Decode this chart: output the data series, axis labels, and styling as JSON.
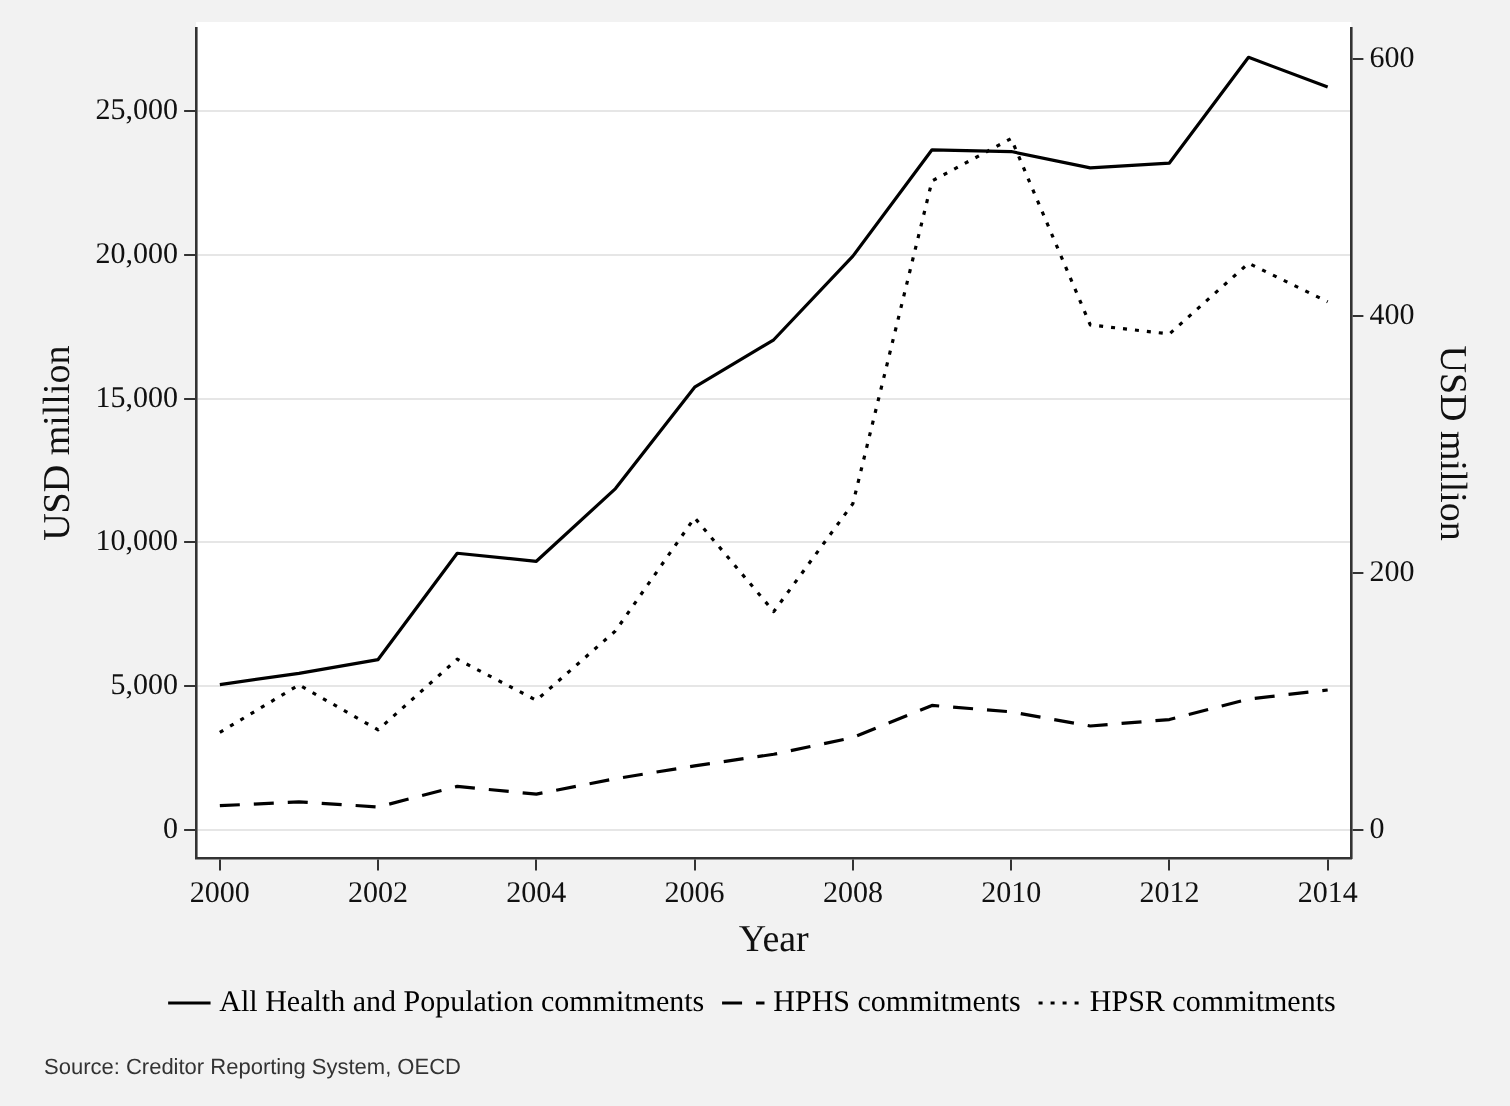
{
  "chart_data": {
    "type": "line",
    "xlabel": "Year",
    "ylabel": "USD million",
    "y2label": "USD million",
    "x": [
      2000,
      2001,
      2002,
      2003,
      2004,
      2005,
      2006,
      2007,
      2008,
      2009,
      2010,
      2011,
      2012,
      2013,
      2014
    ],
    "xlim": [
      1999.7,
      2014.3
    ],
    "xticks": [
      2000,
      2002,
      2004,
      2006,
      2008,
      2010,
      2012,
      2014
    ],
    "ylim": [
      -1000,
      27900
    ],
    "yticks": [
      {
        "value": 0,
        "label": "0"
      },
      {
        "value": 5000,
        "label": "5,000"
      },
      {
        "value": 10000,
        "label": "10,000"
      },
      {
        "value": 15000,
        "label": "15,000"
      },
      {
        "value": 20000,
        "label": "20,000"
      },
      {
        "value": 25000,
        "label": "25,000"
      }
    ],
    "y2lim": [
      -22,
      624
    ],
    "y2ticks": [
      0,
      200,
      400,
      600
    ],
    "grid": "y",
    "legend": "bottom",
    "marker": "none",
    "series": [
      {
        "name": "All Health and Population commitments",
        "color": "#000000",
        "line_style": "solid",
        "values": [
          5050,
          5440,
          5920,
          9620,
          9340,
          11870,
          15400,
          17050,
          19960,
          23660,
          23600,
          23030,
          23200,
          26880,
          25850
        ]
      },
      {
        "name": "HPHS commitments",
        "color": "#000000",
        "line_style": "dashed",
        "axis": "y2",
        "values": [
          19,
          22,
          18,
          34,
          28,
          40,
          50,
          59,
          72,
          97,
          92,
          81,
          86,
          102,
          109
        ]
      },
      {
        "name": "HPSR commitments",
        "color": "#000000",
        "line_style": "dotted",
        "axis": "y2",
        "values": [
          76,
          113,
          78,
          133,
          101,
          155,
          243,
          170,
          254,
          505,
          538,
          393,
          386,
          441,
          411
        ]
      }
    ],
    "annotations": [
      "Source: Creditor Reporting System, OECD"
    ]
  }
}
